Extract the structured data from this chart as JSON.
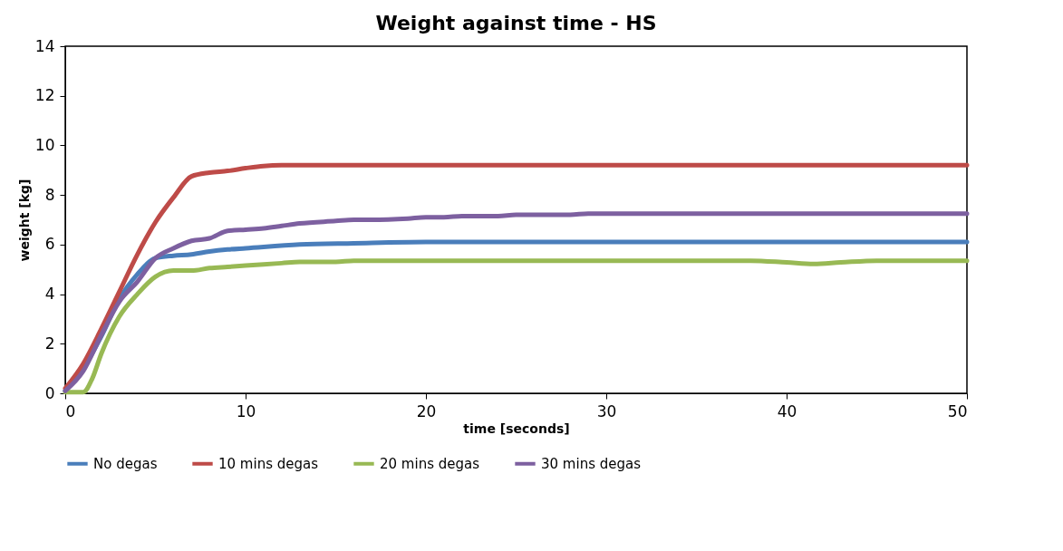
{
  "chart_data": {
    "type": "line",
    "title": "Weight against time - HS",
    "xlabel": "time [seconds]",
    "ylabel": "weight [kg]",
    "xlim": [
      0,
      50
    ],
    "xticks": [
      0,
      10,
      20,
      30,
      40,
      50
    ],
    "ylim": [
      0,
      14
    ],
    "yticks": [
      0,
      2,
      4,
      6,
      8,
      10,
      12,
      14
    ],
    "grid": false,
    "legend": "bottom",
    "marker": "none",
    "line_style": "solid",
    "series": [
      {
        "name": "No degas",
        "color": "#4a7ebb",
        "x": [
          0,
          1,
          2,
          3,
          4,
          5,
          6,
          7,
          8,
          9,
          10,
          13,
          16,
          20,
          50
        ],
        "values": [
          0.1,
          1.0,
          2.3,
          3.8,
          4.8,
          5.45,
          5.55,
          5.6,
          5.72,
          5.8,
          5.85,
          6.0,
          6.05,
          6.1,
          6.1
        ]
      },
      {
        "name": "10 mins degas",
        "color": "#be4b48",
        "x": [
          0,
          1,
          2,
          3,
          4,
          5,
          6,
          7,
          8,
          9,
          10,
          11,
          12,
          50
        ],
        "values": [
          0.2,
          1.2,
          2.6,
          4.1,
          5.6,
          6.9,
          7.9,
          8.75,
          8.9,
          8.97,
          9.08,
          9.17,
          9.2,
          9.2
        ]
      },
      {
        "name": "20 mins degas",
        "color": "#98b954",
        "x": [
          0,
          1,
          1.5,
          2,
          3,
          4,
          5,
          6,
          7,
          8,
          9,
          10,
          12,
          13,
          15,
          16,
          38,
          40,
          41.5,
          43,
          45,
          50
        ],
        "values": [
          0.05,
          0.05,
          0.6,
          1.6,
          3.1,
          4.0,
          4.7,
          4.95,
          4.95,
          5.05,
          5.1,
          5.15,
          5.25,
          5.3,
          5.3,
          5.35,
          5.35,
          5.28,
          5.22,
          5.28,
          5.35,
          5.35
        ]
      },
      {
        "name": "30 mins degas",
        "color": "#7d60a0",
        "x": [
          0,
          1,
          2,
          3,
          4,
          5,
          6,
          7,
          8,
          9,
          10,
          11,
          12,
          13,
          15,
          16,
          17,
          19,
          20,
          21,
          22,
          24,
          25,
          28,
          29,
          50
        ],
        "values": [
          0.1,
          0.9,
          2.35,
          3.7,
          4.5,
          5.45,
          5.85,
          6.15,
          6.25,
          6.55,
          6.6,
          6.65,
          6.75,
          6.85,
          6.95,
          7.0,
          7.0,
          7.05,
          7.1,
          7.1,
          7.15,
          7.15,
          7.2,
          7.2,
          7.25,
          7.25
        ]
      }
    ]
  }
}
